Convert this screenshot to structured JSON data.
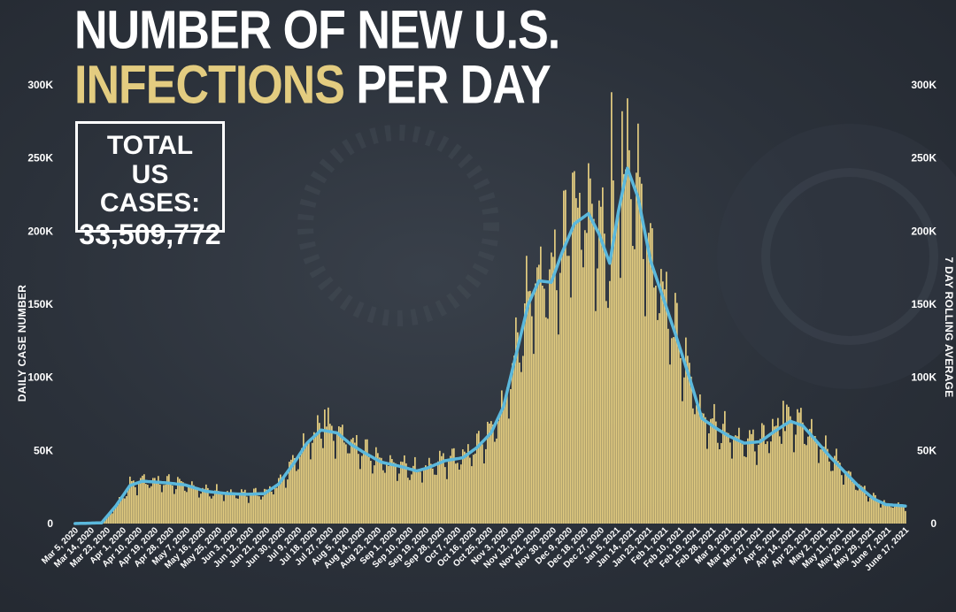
{
  "header": {
    "title_line1": "NUMBER OF NEW U.S.",
    "title_line2_accent": "INFECTIONS",
    "title_line2_rest": "PER DAY"
  },
  "total_box": {
    "line1": "TOTAL",
    "line2": "US CASES:",
    "value": "33,509,772"
  },
  "colors": {
    "bars": "#e3cc80",
    "rolling_line": "#5bb8dc",
    "accent_text": "#e3cc80",
    "background": "#2b313a"
  },
  "chart_data": {
    "type": "bar",
    "title": "NUMBER OF NEW U.S. INFECTIONS PER DAY",
    "ylabel": "DAILY CASE NUMBER",
    "ylabel_right": "7 DAY ROLLING AVERAGE",
    "ylim": [
      0,
      300000
    ],
    "yticks": [
      "0",
      "50K",
      "100K",
      "150K",
      "200K",
      "250K",
      "300K"
    ],
    "yticks_values": [
      0,
      50000,
      100000,
      150000,
      200000,
      250000,
      300000
    ],
    "x_start": "2020-03-05",
    "x_end": "2021-06-17",
    "xtick_labels": [
      "Mar 5, 2020",
      "Mar 14, 2020",
      "Mar 23, 2020",
      "Apr 1, 2020",
      "Apr 10, 2020",
      "Apr 19, 2020",
      "Apr 28, 2020",
      "May 7, 2020",
      "May 16, 2020",
      "May 25, 2020",
      "Jun 3, 2020",
      "Jun 12, 2020",
      "Jun 21, 2020",
      "Jun 30, 2020",
      "Jul 9, 2020",
      "Jul 18, 2020",
      "Jul 27, 2020",
      "Aug 5, 2020",
      "Aug 14, 2020",
      "Aug 23, 2020",
      "Sep 1, 2020",
      "Sep 10, 2020",
      "Sep 19, 2020",
      "Sep 28, 2020",
      "Oct 7, 2020",
      "Oct 16, 2020",
      "Oct 25, 2020",
      "Nov 3, 2020",
      "Nov 12, 2020",
      "Nov 21, 2020",
      "Nov 30, 2020",
      "Dec 9, 2020",
      "Dec 18, 2020",
      "Dec 27, 2020",
      "Jan 5, 2021",
      "Jan 14, 2021",
      "Jan 23, 2021",
      "Feb 1, 2021",
      "Feb 10, 2021",
      "Feb 19, 2021",
      "Feb 28, 2021",
      "Mar 9, 2021",
      "Mar 18, 2021",
      "Mar 27, 2021",
      "Apr 5, 2021",
      "Apr 14, 2021",
      "Apr 23, 2021",
      "May 2, 2021",
      "May 11, 2021",
      "May 20, 2021",
      "May 29, 2021",
      "June 7, 2021",
      "June 17, 2021"
    ],
    "series": [
      {
        "name": "7 DAY ROLLING AVERAGE",
        "type": "line",
        "points": [
          [
            "2020-03-05",
            0
          ],
          [
            "2020-03-20",
            500
          ],
          [
            "2020-03-28",
            12000
          ],
          [
            "2020-04-05",
            26000
          ],
          [
            "2020-04-12",
            29000
          ],
          [
            "2020-04-24",
            28000
          ],
          [
            "2020-05-06",
            26500
          ],
          [
            "2020-05-18",
            22000
          ],
          [
            "2020-05-30",
            20500
          ],
          [
            "2020-06-10",
            20000
          ],
          [
            "2020-06-20",
            20500
          ],
          [
            "2020-06-28",
            27000
          ],
          [
            "2020-07-07",
            42000
          ],
          [
            "2020-07-14",
            55000
          ],
          [
            "2020-07-22",
            64000
          ],
          [
            "2020-07-31",
            62000
          ],
          [
            "2020-08-08",
            54000
          ],
          [
            "2020-08-16",
            48000
          ],
          [
            "2020-08-25",
            42000
          ],
          [
            "2020-09-05",
            39000
          ],
          [
            "2020-09-14",
            36000
          ],
          [
            "2020-09-20",
            38000
          ],
          [
            "2020-09-30",
            43000
          ],
          [
            "2020-10-10",
            45000
          ],
          [
            "2020-10-18",
            52000
          ],
          [
            "2020-10-26",
            62000
          ],
          [
            "2020-11-02",
            80000
          ],
          [
            "2020-11-09",
            115000
          ],
          [
            "2020-11-16",
            150000
          ],
          [
            "2020-11-22",
            166000
          ],
          [
            "2020-11-29",
            165000
          ],
          [
            "2020-12-05",
            185000
          ],
          [
            "2020-12-12",
            205000
          ],
          [
            "2020-12-20",
            212000
          ],
          [
            "2020-12-26",
            198000
          ],
          [
            "2021-01-01",
            178000
          ],
          [
            "2021-01-06",
            214000
          ],
          [
            "2021-01-11",
            243000
          ],
          [
            "2021-01-17",
            223000
          ],
          [
            "2021-01-24",
            180000
          ],
          [
            "2021-01-31",
            155000
          ],
          [
            "2021-02-07",
            130000
          ],
          [
            "2021-02-15",
            100000
          ],
          [
            "2021-02-22",
            72000
          ],
          [
            "2021-03-01",
            66000
          ],
          [
            "2021-03-09",
            60000
          ],
          [
            "2021-03-18",
            55000
          ],
          [
            "2021-03-27",
            56000
          ],
          [
            "2021-04-04",
            63000
          ],
          [
            "2021-04-13",
            70000
          ],
          [
            "2021-04-20",
            67000
          ],
          [
            "2021-04-28",
            56000
          ],
          [
            "2021-05-06",
            45000
          ],
          [
            "2021-05-14",
            35000
          ],
          [
            "2021-05-22",
            25000
          ],
          [
            "2021-05-30",
            17000
          ],
          [
            "2021-06-06",
            13000
          ],
          [
            "2021-06-12",
            12500
          ],
          [
            "2021-06-17",
            12000
          ]
        ]
      }
    ],
    "bars_name": "DAILY CASE NUMBER",
    "bars_note": "Daily bar values follow the rolling average with daily fluctuation; notable spikes listed below.",
    "bar_spikes": [
      [
        "2020-07-24",
        78000
      ],
      [
        "2020-12-11",
        240000
      ],
      [
        "2021-01-02",
        295000
      ],
      [
        "2021-01-08",
        282000
      ],
      [
        "2021-04-09",
        84000
      ]
    ]
  }
}
